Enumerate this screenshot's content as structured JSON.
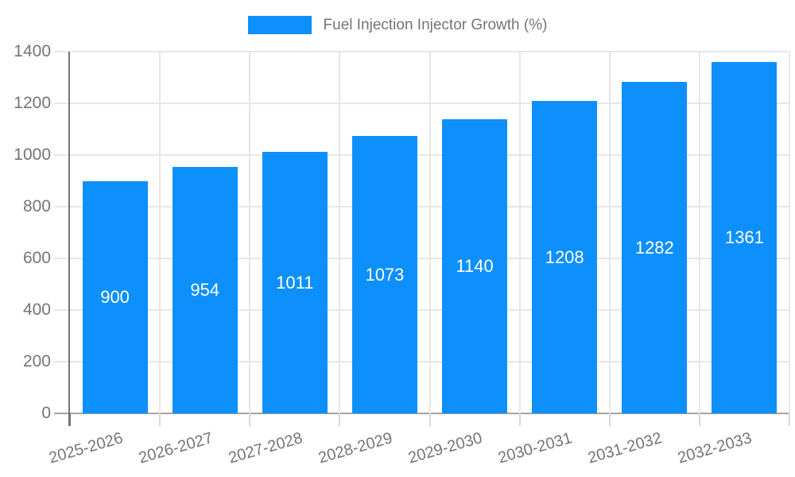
{
  "chart_data": {
    "type": "bar",
    "title": "Fuel Injection Injector Growth (%)",
    "categories": [
      "2025-2026",
      "2026-2027",
      "2027-2028",
      "2028-2029",
      "2029-2030",
      "2030-2031",
      "2031-2032",
      "2032-2033"
    ],
    "values": [
      900,
      954,
      1011,
      1073,
      1140,
      1208,
      1282,
      1361
    ],
    "xlabel": "",
    "ylabel": "",
    "ylim": [
      0,
      1400
    ],
    "yticks": [
      0,
      200,
      400,
      600,
      800,
      1000,
      1200,
      1400
    ],
    "grid": true,
    "legend_position": "top",
    "x_label_rotation_deg": -16,
    "colors": {
      "bar": "#0d90fb",
      "value_label": "#ffffff",
      "axis_text": "#757575",
      "gridline": "#e7e7e7",
      "below_tick": "#d9d9d9",
      "axis_line": "#757575",
      "baseline": "#a3a3a3"
    }
  }
}
